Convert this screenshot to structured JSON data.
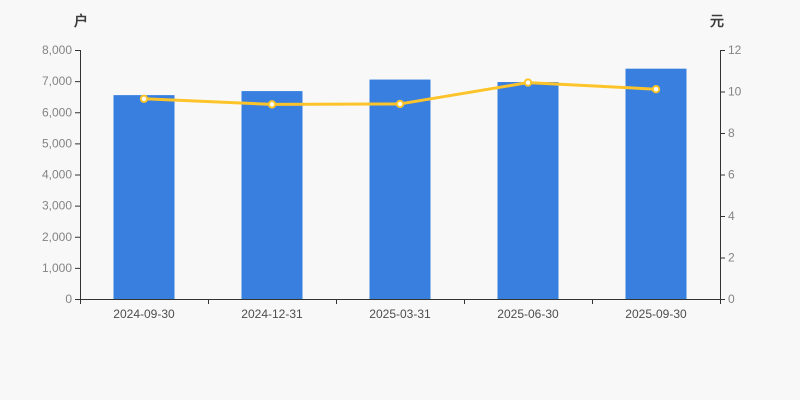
{
  "chart_data": {
    "type": "combo-bar-line",
    "categories": [
      "2024-09-30",
      "2024-12-31",
      "2025-03-31",
      "2025-06-30",
      "2025-09-30"
    ],
    "series": [
      {
        "name": "households",
        "type": "bar",
        "axis": "left",
        "color": "#387fe0",
        "values": [
          6550,
          6680,
          7050,
          6970,
          7400
        ]
      },
      {
        "name": "per-share-value",
        "type": "line",
        "axis": "right",
        "color": "#fcc42a",
        "point_fill": "#ffffff",
        "values": [
          9.65,
          9.38,
          9.4,
          10.43,
          10.11
        ]
      }
    ],
    "left_axis": {
      "title": "户",
      "min": 0,
      "max": 8000,
      "tick_step": 1000,
      "tick_labels": [
        "0",
        "1,000",
        "2,000",
        "3,000",
        "4,000",
        "5,000",
        "6,000",
        "7,000",
        "8,000"
      ]
    },
    "right_axis": {
      "title": "元",
      "min": 0,
      "max": 12,
      "tick_step": 2,
      "tick_labels": [
        "0",
        "2",
        "4",
        "6",
        "8",
        "10",
        "12"
      ]
    },
    "grid": false,
    "legend_position": "none",
    "colors": {
      "background": "#f8f8f8",
      "axis_line": "#333333",
      "y_tick_label": "#848484",
      "x_tick_label": "#4d4d4d"
    }
  }
}
